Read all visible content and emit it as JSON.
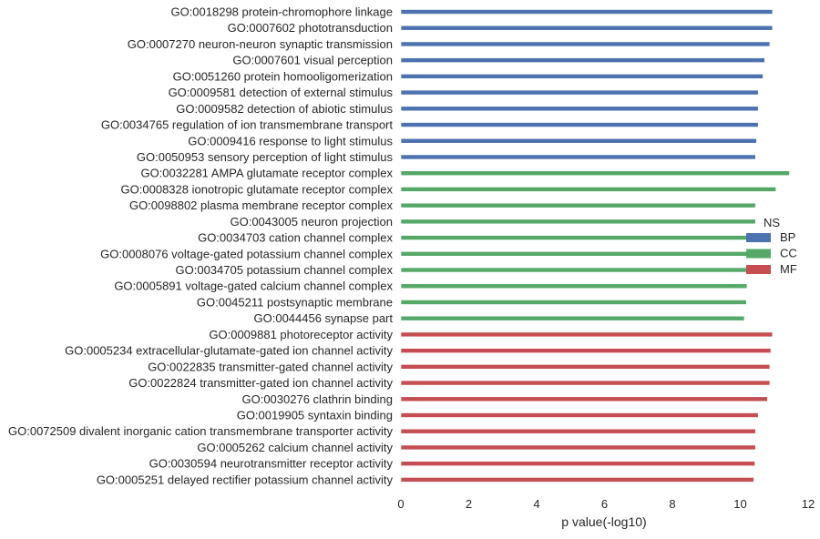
{
  "chart_data": {
    "type": "bar",
    "orientation": "horizontal",
    "xlabel": "p value(-log10)",
    "xlim": [
      0,
      12
    ],
    "xticks": [
      0,
      2,
      4,
      6,
      8,
      10,
      12
    ],
    "grid": false,
    "legend": {
      "title": "NS",
      "placement": "center-right",
      "entries": [
        {
          "name": "BP",
          "color": "#4c72b0"
        },
        {
          "name": "CC",
          "color": "#55a868"
        },
        {
          "name": "MF",
          "color": "#c44e52"
        }
      ]
    },
    "bars": [
      {
        "label": "GO:0018298 protein-chromophore linkage",
        "value": 10.95,
        "group": "BP"
      },
      {
        "label": "GO:0007602 phototransduction",
        "value": 10.95,
        "group": "BP"
      },
      {
        "label": "GO:0007270 neuron-neuron synaptic transmission",
        "value": 10.87,
        "group": "BP"
      },
      {
        "label": "GO:0007601 visual perception",
        "value": 10.72,
        "group": "BP"
      },
      {
        "label": "GO:0051260 protein homooligomerization",
        "value": 10.67,
        "group": "BP"
      },
      {
        "label": "GO:0009581 detection of external stimulus",
        "value": 10.53,
        "group": "BP"
      },
      {
        "label": "GO:0009582 detection of abiotic stimulus",
        "value": 10.53,
        "group": "BP"
      },
      {
        "label": "GO:0034765 regulation of ion transmembrane transport",
        "value": 10.53,
        "group": "BP"
      },
      {
        "label": "GO:0009416 response to light stimulus",
        "value": 10.48,
        "group": "BP"
      },
      {
        "label": "GO:0050953 sensory perception of light stimulus",
        "value": 10.45,
        "group": "BP"
      },
      {
        "label": "GO:0032281 AMPA glutamate receptor complex",
        "value": 11.45,
        "group": "CC"
      },
      {
        "label": "GO:0008328 ionotropic glutamate receptor complex",
        "value": 11.05,
        "group": "CC"
      },
      {
        "label": "GO:0098802 plasma membrane receptor complex",
        "value": 10.45,
        "group": "CC"
      },
      {
        "label": "GO:0043005 neuron projection",
        "value": 10.45,
        "group": "CC"
      },
      {
        "label": "GO:0034703 cation channel complex",
        "value": 10.42,
        "group": "CC"
      },
      {
        "label": "GO:0008076 voltage-gated potassium channel complex",
        "value": 10.38,
        "group": "CC"
      },
      {
        "label": "GO:0034705 potassium channel complex",
        "value": 10.35,
        "group": "CC"
      },
      {
        "label": "GO:0005891 voltage-gated calcium channel complex",
        "value": 10.2,
        "group": "CC"
      },
      {
        "label": "GO:0045211 postsynaptic membrane",
        "value": 10.18,
        "group": "CC"
      },
      {
        "label": "GO:0044456 synapse part",
        "value": 10.12,
        "group": "CC"
      },
      {
        "label": "GO:0009881 photoreceptor activity",
        "value": 10.95,
        "group": "MF"
      },
      {
        "label": "GO:0005234 extracellular-glutamate-gated ion channel activity",
        "value": 10.9,
        "group": "MF"
      },
      {
        "label": "GO:0022835 transmitter-gated channel activity",
        "value": 10.87,
        "group": "MF"
      },
      {
        "label": "GO:0022824 transmitter-gated ion channel activity",
        "value": 10.87,
        "group": "MF"
      },
      {
        "label": "GO:0030276 clathrin binding",
        "value": 10.8,
        "group": "MF"
      },
      {
        "label": "GO:0019905 syntaxin binding",
        "value": 10.53,
        "group": "MF"
      },
      {
        "label": "GO:0072509 divalent inorganic cation transmembrane transporter activity",
        "value": 10.45,
        "group": "MF"
      },
      {
        "label": "GO:0005262 calcium channel activity",
        "value": 10.45,
        "group": "MF"
      },
      {
        "label": "GO:0030594 neurotransmitter receptor activity",
        "value": 10.43,
        "group": "MF"
      },
      {
        "label": "GO:0005251 delayed rectifier potassium channel activity",
        "value": 10.4,
        "group": "MF"
      }
    ]
  }
}
